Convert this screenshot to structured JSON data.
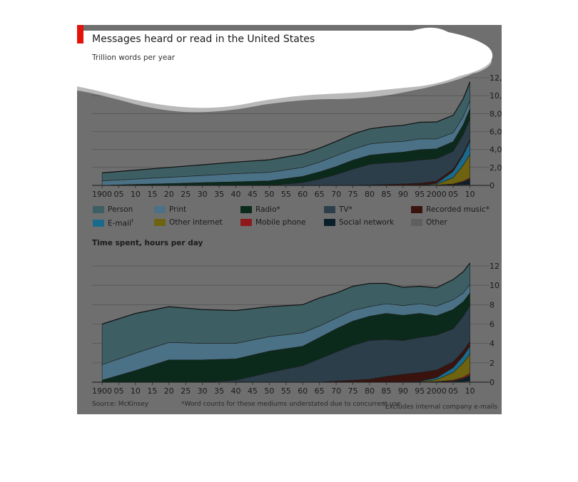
{
  "header": {
    "title": "Messages heard or read in the United States",
    "subtitle": "Trillion words per year",
    "accent_color": "#e3120b"
  },
  "legend": [
    {
      "label": "Person",
      "color": "#3d5e63"
    },
    {
      "label": "Print",
      "color": "#4a7185"
    },
    {
      "label": "Radio*",
      "color": "#0b2a1c"
    },
    {
      "label": "TV*",
      "color": "#2c3e4a"
    },
    {
      "label": "Recorded music*",
      "color": "#3a130e"
    },
    {
      "label": "E-mail",
      "sup": "†",
      "color": "#1a6a8c"
    },
    {
      "label": "Other internet",
      "color": "#6d6310"
    },
    {
      "label": "Mobile phone",
      "color": "#8c1a1c"
    },
    {
      "label": "Social network",
      "color": "#0a1f2a"
    },
    {
      "label": "Other",
      "color": "#5f5f5f"
    }
  ],
  "panel2_title": "Time spent, hours per day",
  "footer": {
    "source": "Source: McKinsey",
    "note_words": "*Word counts for these mediums understated due to concurrent use",
    "note_dagger": "†",
    "note_email": "Excludes internal company e-mails"
  },
  "chart_data": [
    {
      "type": "area",
      "stacked": true,
      "title": "Messages heard or read in the United States",
      "subtitle": "Trillion words per year",
      "ylim": [
        0,
        12000
      ],
      "y_ticks": [
        0,
        2000,
        4000,
        6000,
        8000,
        10000,
        12000
      ],
      "y_tick_labels": [
        "0",
        "2,000",
        "4,000",
        "6,000",
        "8,000",
        "10,000",
        "12,000"
      ],
      "x_ticks": [
        1900,
        1905,
        1910,
        1915,
        1920,
        1925,
        1930,
        1935,
        1940,
        1945,
        1950,
        1955,
        1960,
        1965,
        1970,
        1975,
        1980,
        1985,
        1990,
        1995,
        2000,
        2005,
        2010
      ],
      "x_tick_labels": [
        "1900",
        "05",
        "10",
        "15",
        "20",
        "25",
        "30",
        "35",
        "40",
        "45",
        "50",
        "55",
        "60",
        "65",
        "70",
        "75",
        "80",
        "85",
        "90",
        "95",
        "2000",
        "05",
        "10"
      ],
      "x": [
        1900,
        1910,
        1920,
        1930,
        1940,
        1950,
        1960,
        1965,
        1970,
        1975,
        1980,
        1985,
        1990,
        1995,
        2000,
        2005,
        2008,
        2010
      ],
      "series": [
        {
          "name": "Other",
          "values": [
            0,
            0,
            0,
            0,
            0,
            0,
            0,
            0,
            0,
            0,
            0,
            0,
            0,
            0,
            0,
            50,
            60,
            80
          ]
        },
        {
          "name": "Social network",
          "values": [
            0,
            0,
            0,
            0,
            0,
            0,
            0,
            0,
            0,
            0,
            0,
            0,
            0,
            0,
            0,
            50,
            300,
            600
          ]
        },
        {
          "name": "Mobile phone",
          "values": [
            0,
            0,
            0,
            0,
            0,
            0,
            0,
            0,
            0,
            0,
            0,
            0,
            0,
            0,
            20,
            60,
            100,
            150
          ]
        },
        {
          "name": "Other internet",
          "values": [
            0,
            0,
            0,
            0,
            0,
            0,
            0,
            0,
            0,
            0,
            0,
            0,
            0,
            10,
            100,
            700,
            1800,
            2600
          ]
        },
        {
          "name": "E-mail",
          "values": [
            0,
            0,
            0,
            0,
            0,
            0,
            0,
            0,
            0,
            0,
            0,
            0,
            0,
            20,
            100,
            700,
            1100,
            1500
          ]
        },
        {
          "name": "Recorded music*",
          "values": [
            0,
            0,
            0,
            0,
            0,
            0,
            0,
            0,
            0,
            10,
            50,
            100,
            150,
            200,
            250,
            250,
            200,
            200
          ]
        },
        {
          "name": "TV*",
          "values": [
            0,
            0,
            0,
            0,
            0,
            0,
            300,
            700,
            1200,
            1800,
            2300,
            2400,
            2450,
            2600,
            2500,
            2000,
            2100,
            2300
          ]
        },
        {
          "name": "Radio*",
          "values": [
            0,
            100,
            200,
            300,
            400,
            500,
            700,
            800,
            900,
            1000,
            1000,
            1050,
            1100,
            1150,
            1100,
            1050,
            1100,
            1100
          ]
        },
        {
          "name": "Print",
          "values": [
            500,
            600,
            700,
            800,
            900,
            950,
            1000,
            1100,
            1200,
            1200,
            1250,
            1250,
            1200,
            1200,
            1100,
            1000,
            900,
            900
          ]
        },
        {
          "name": "Person",
          "values": [
            900,
            1000,
            1100,
            1200,
            1300,
            1400,
            1500,
            1550,
            1600,
            1700,
            1700,
            1750,
            1800,
            1850,
            1900,
            1950,
            2000,
            2100
          ]
        }
      ]
    },
    {
      "type": "area",
      "stacked": true,
      "title": "Time spent, hours per day",
      "ylim": [
        0,
        12
      ],
      "y_ticks": [
        0,
        2,
        4,
        6,
        8,
        10,
        12
      ],
      "y_tick_labels": [
        "0",
        "2",
        "4",
        "6",
        "8",
        "10",
        "12"
      ],
      "x_ticks": [
        1900,
        1905,
        1910,
        1915,
        1920,
        1925,
        1930,
        1935,
        1940,
        1945,
        1950,
        1955,
        1960,
        1965,
        1970,
        1975,
        1980,
        1985,
        1990,
        1995,
        2000,
        2005,
        2010
      ],
      "x_tick_labels": [
        "1900",
        "05",
        "10",
        "15",
        "20",
        "25",
        "30",
        "35",
        "40",
        "45",
        "50",
        "55",
        "60",
        "65",
        "70",
        "75",
        "80",
        "85",
        "90",
        "95",
        "2000",
        "05",
        "10"
      ],
      "x": [
        1900,
        1910,
        1920,
        1930,
        1940,
        1950,
        1960,
        1965,
        1970,
        1975,
        1980,
        1985,
        1990,
        1995,
        2000,
        2005,
        2008,
        2010
      ],
      "series": [
        {
          "name": "Other",
          "values": [
            0,
            0,
            0,
            0,
            0,
            0,
            0,
            0,
            0,
            0,
            0,
            0,
            0,
            0,
            0,
            0.05,
            0.05,
            0.1
          ]
        },
        {
          "name": "Social network",
          "values": [
            0,
            0,
            0,
            0,
            0,
            0,
            0,
            0,
            0,
            0,
            0,
            0,
            0,
            0,
            0,
            0.05,
            0.3,
            0.6
          ]
        },
        {
          "name": "Mobile phone",
          "values": [
            0,
            0,
            0,
            0,
            0,
            0,
            0,
            0,
            0,
            0,
            0,
            0,
            0,
            0,
            0.05,
            0.1,
            0.15,
            0.2
          ]
        },
        {
          "name": "Other internet",
          "values": [
            0,
            0,
            0,
            0,
            0,
            0,
            0,
            0,
            0,
            0,
            0,
            0,
            0,
            0.05,
            0.2,
            0.8,
            1.5,
            2
          ]
        },
        {
          "name": "E-mail",
          "values": [
            0,
            0,
            0,
            0,
            0,
            0,
            0,
            0,
            0,
            0,
            0,
            0,
            0,
            0.05,
            0.2,
            0.5,
            0.7,
            0.8
          ]
        },
        {
          "name": "Recorded music*",
          "values": [
            0,
            0,
            0,
            0,
            0,
            0,
            0,
            0,
            0.1,
            0.2,
            0.3,
            0.6,
            0.8,
            0.9,
            0.8,
            0.6,
            0.5,
            0.5
          ]
        },
        {
          "name": "TV*",
          "values": [
            0,
            0,
            0,
            0,
            0.2,
            1,
            1.7,
            2.4,
            3,
            3.6,
            4,
            3.8,
            3.5,
            3.6,
            3.6,
            3.4,
            3.6,
            3.7
          ]
        },
        {
          "name": "Radio*",
          "values": [
            0.2,
            1.2,
            2.3,
            2.3,
            2.2,
            2.2,
            2,
            2.2,
            2.4,
            2.5,
            2.5,
            2.7,
            2.6,
            2.5,
            2,
            2,
            1.5,
            1.3
          ]
        },
        {
          "name": "Print",
          "values": [
            1.6,
            1.8,
            1.8,
            1.7,
            1.6,
            1.5,
            1.4,
            1.2,
            1.1,
            1.1,
            1,
            1,
            1,
            1,
            1,
            1,
            0.9,
            0.9
          ]
        },
        {
          "name": "Person",
          "values": [
            4.2,
            4.1,
            3.7,
            3.5,
            3.4,
            3.1,
            2.9,
            2.9,
            2.6,
            2.5,
            2.4,
            2.1,
            1.9,
            1.8,
            1.9,
            2.1,
            2.2,
            2.2
          ]
        }
      ]
    }
  ]
}
